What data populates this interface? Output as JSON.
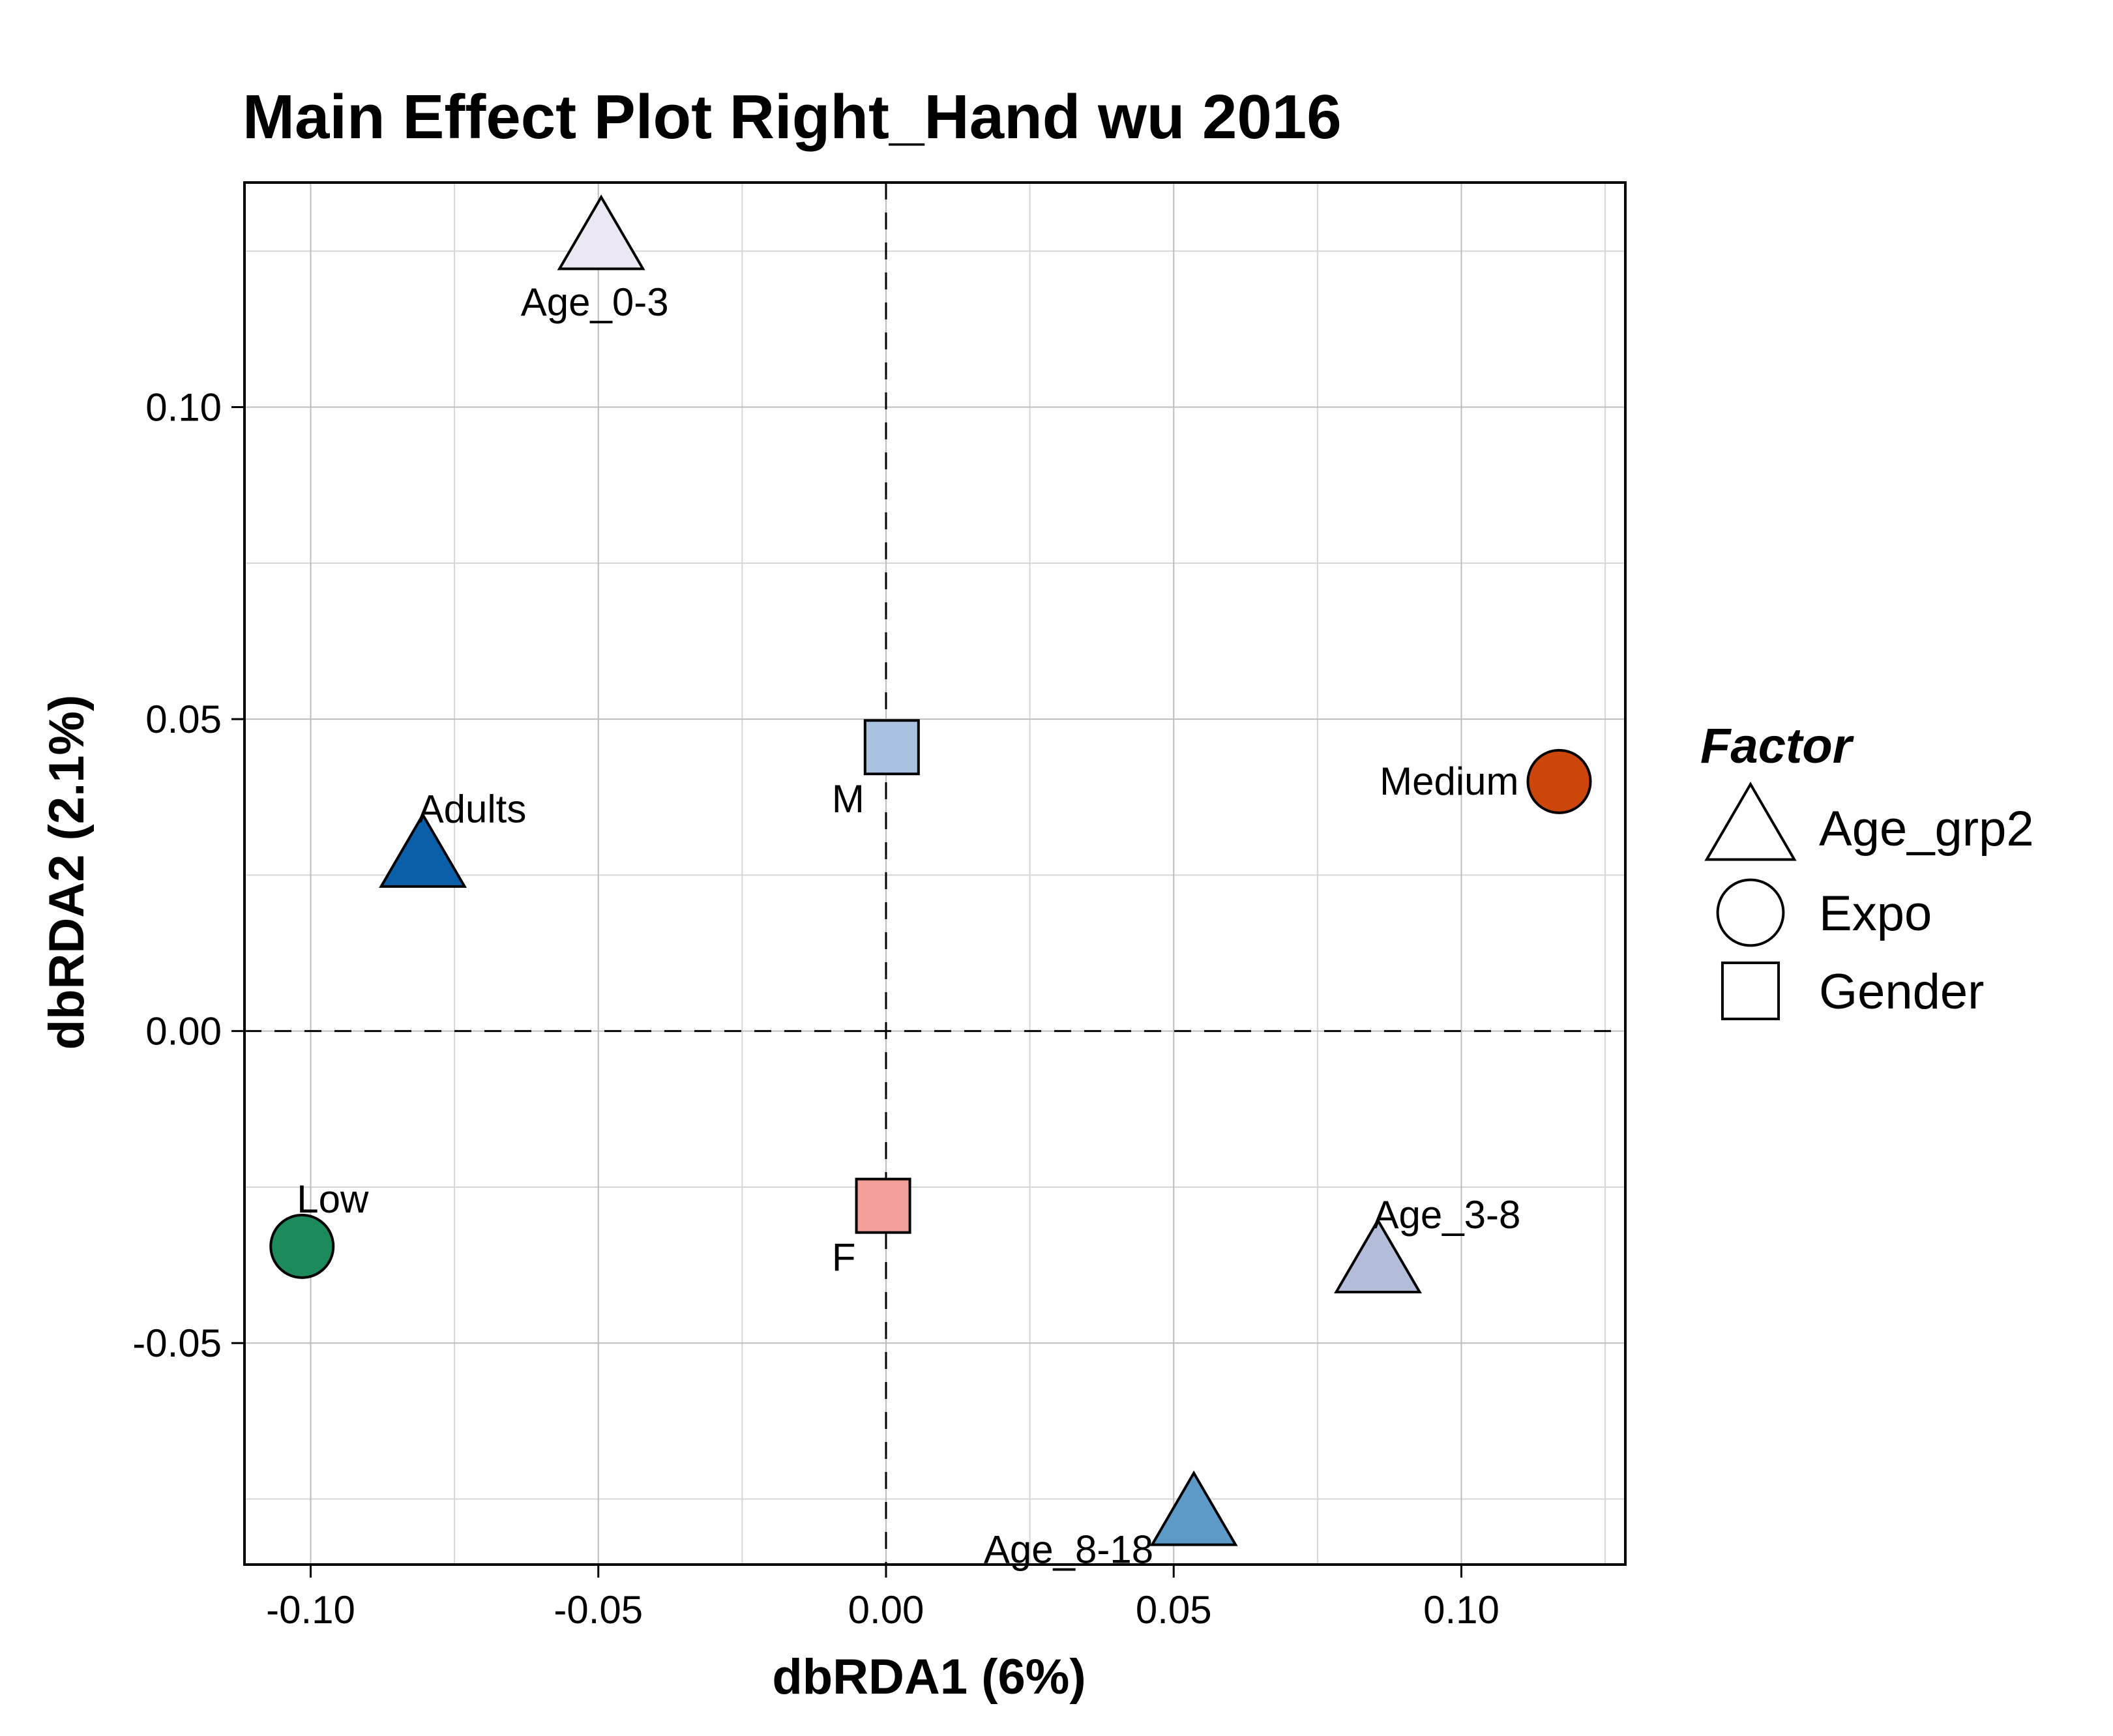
{
  "chart_data": {
    "type": "scatter",
    "title": "Main Effect Plot Right_Hand wu 2016",
    "xlabel": "dbRDA1 (6%)",
    "ylabel": "dbRDA2 (2.1%)",
    "xlim": [
      -0.1115,
      0.1285
    ],
    "ylim": [
      -0.0855,
      0.136
    ],
    "x_major_ticks": [
      -0.1,
      -0.05,
      0.0,
      0.05,
      0.1
    ],
    "x_tick_labels": [
      "-0.10",
      "-0.05",
      "0.00",
      "0.05",
      "0.10"
    ],
    "y_major_ticks": [
      -0.05,
      0.0,
      0.05,
      0.1
    ],
    "y_tick_labels": [
      "-0.05",
      "0.00",
      "0.05",
      "0.10"
    ],
    "x_minor_ticks": [
      -0.075,
      -0.025,
      0.025,
      0.075,
      0.125
    ],
    "y_minor_ticks": [
      -0.075,
      -0.025,
      0.025,
      0.075,
      0.125
    ],
    "grid": true,
    "reference_lines": {
      "x": 0,
      "y": 0,
      "style": "dashed"
    },
    "legend": {
      "title": "Factor",
      "position": "right",
      "entries": [
        {
          "label": "Age_grp2",
          "shape": "triangle"
        },
        {
          "label": "Expo",
          "shape": "circle"
        },
        {
          "label": "Gender",
          "shape": "square"
        }
      ]
    },
    "points": [
      {
        "label": "Age_0-3",
        "factor": "Age_grp2",
        "shape": "triangle",
        "x": -0.0495,
        "y": 0.127,
        "color": "#ebe8f4",
        "label_pos": "below"
      },
      {
        "label": "Adults",
        "factor": "Age_grp2",
        "shape": "triangle",
        "x": -0.0805,
        "y": 0.028,
        "color": "#0b5ea8",
        "label_pos": "above-right"
      },
      {
        "label": "Age_3-8",
        "factor": "Age_grp2",
        "shape": "triangle",
        "x": 0.0855,
        "y": -0.037,
        "color": "#b3bcd9",
        "label_pos": "above-right"
      },
      {
        "label": "Age_8-18",
        "factor": "Age_grp2",
        "shape": "triangle",
        "x": 0.0535,
        "y": -0.0775,
        "color": "#5d9ac8",
        "label_pos": "below-left"
      },
      {
        "label": "Medium",
        "factor": "Expo",
        "shape": "circle",
        "x": 0.117,
        "y": 0.04,
        "color": "#cc4609",
        "label_pos": "left"
      },
      {
        "label": "Low",
        "factor": "Expo",
        "shape": "circle",
        "x": -0.1015,
        "y": -0.0345,
        "color": "#1d8a5c",
        "label_pos": "above-right"
      },
      {
        "label": "M",
        "factor": "Gender",
        "shape": "square",
        "x": 0.001,
        "y": 0.0455,
        "color": "#a8c2df",
        "label_pos": "below-left"
      },
      {
        "label": "F",
        "factor": "Gender",
        "shape": "square",
        "x": -0.0005,
        "y": -0.028,
        "color": "#f4a09a",
        "label_pos": "below-left"
      }
    ]
  }
}
